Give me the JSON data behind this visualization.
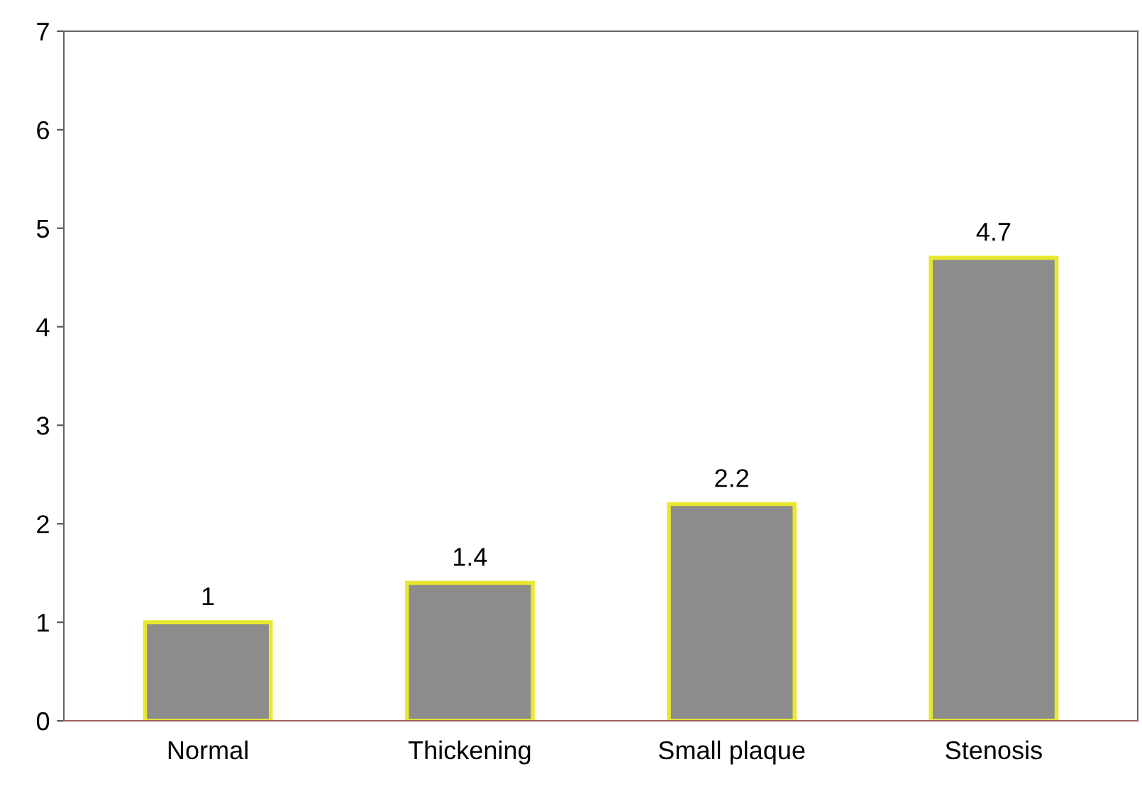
{
  "chart_data": {
    "type": "bar",
    "categories": [
      "Normal",
      "Thickening",
      "Small plaque",
      "Stenosis"
    ],
    "values": [
      1,
      1.4,
      2.2,
      4.7
    ],
    "color": "#8c8c8c",
    "ylim": [
      0,
      7
    ],
    "yticks": [
      0,
      1,
      2,
      3,
      4,
      5,
      6,
      7
    ],
    "grid": false,
    "data_labels": true
  }
}
